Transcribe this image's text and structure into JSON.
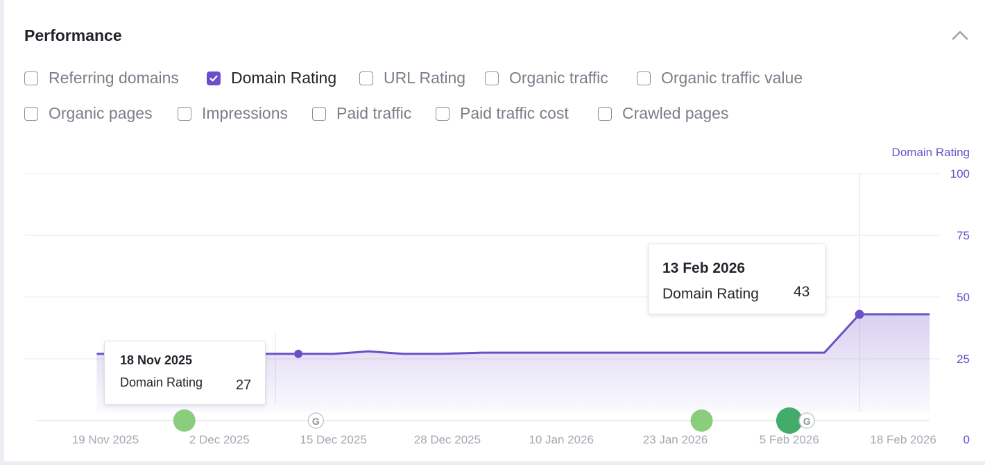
{
  "panel": {
    "title": "Performance"
  },
  "metrics": [
    {
      "label": "Referring domains",
      "checked": false
    },
    {
      "label": "Domain Rating",
      "checked": true
    },
    {
      "label": "URL Rating",
      "checked": false
    },
    {
      "label": "Organic traffic",
      "checked": false
    },
    {
      "label": "Organic traffic value",
      "checked": false
    },
    {
      "label": "Organic pages",
      "checked": false
    },
    {
      "label": "Impressions",
      "checked": false
    },
    {
      "label": "Paid traffic",
      "checked": false
    },
    {
      "label": "Paid traffic cost",
      "checked": false
    },
    {
      "label": "Crawled pages",
      "checked": false
    }
  ],
  "chart_data": {
    "type": "area",
    "series": [
      {
        "name": "Domain Rating",
        "color": "#6b4fc9",
        "points": [
          [
            "2025-11-18",
            27
          ],
          [
            "2025-11-19",
            27
          ],
          [
            "2025-12-11",
            27
          ],
          [
            "2025-12-15",
            27
          ],
          [
            "2025-12-19",
            28
          ],
          [
            "2025-12-23",
            27
          ],
          [
            "2025-12-27",
            27
          ],
          [
            "2026-01-01",
            27.5
          ],
          [
            "2026-02-09",
            27.5
          ],
          [
            "2026-02-13",
            43
          ],
          [
            "2026-02-21",
            43
          ]
        ]
      }
    ],
    "ylim": [
      0,
      100
    ],
    "yticks": [
      "100",
      "75",
      "50",
      "25",
      "0"
    ],
    "xticks": [
      "19 Nov 2025",
      "2 Dec 2025",
      "15 Dec 2025",
      "28 Dec 2025",
      "10 Jan 2026",
      "23 Jan 2026",
      "5 Feb 2026",
      "18 Feb 2026"
    ],
    "grid": true,
    "event_markers": [
      {
        "date": "2025-11-28",
        "kind": "dot",
        "color": "#7cc86f"
      },
      {
        "date": "2025-12-13",
        "kind": "google-update-icon"
      },
      {
        "date": "2026-01-26",
        "kind": "dot",
        "color": "#7cc86f"
      },
      {
        "date": "2026-02-05",
        "kind": "dot",
        "color": "#3aa863"
      },
      {
        "date": "2026-02-07",
        "kind": "google-update-icon"
      }
    ],
    "tooltips": [
      {
        "date": "18 Nov 2025",
        "series": "Domain Rating",
        "value": "27"
      },
      {
        "date": "13 Feb 2026",
        "series": "Domain Rating",
        "value": "43"
      }
    ]
  },
  "colors": {
    "accent": "#6b4fc9",
    "text": "#22252b",
    "muted": "#7a7e88",
    "grid": "#e6e8ec"
  },
  "icons": {
    "collapse": "chevron-up-icon",
    "google": "google-icon",
    "check": "check-icon"
  }
}
